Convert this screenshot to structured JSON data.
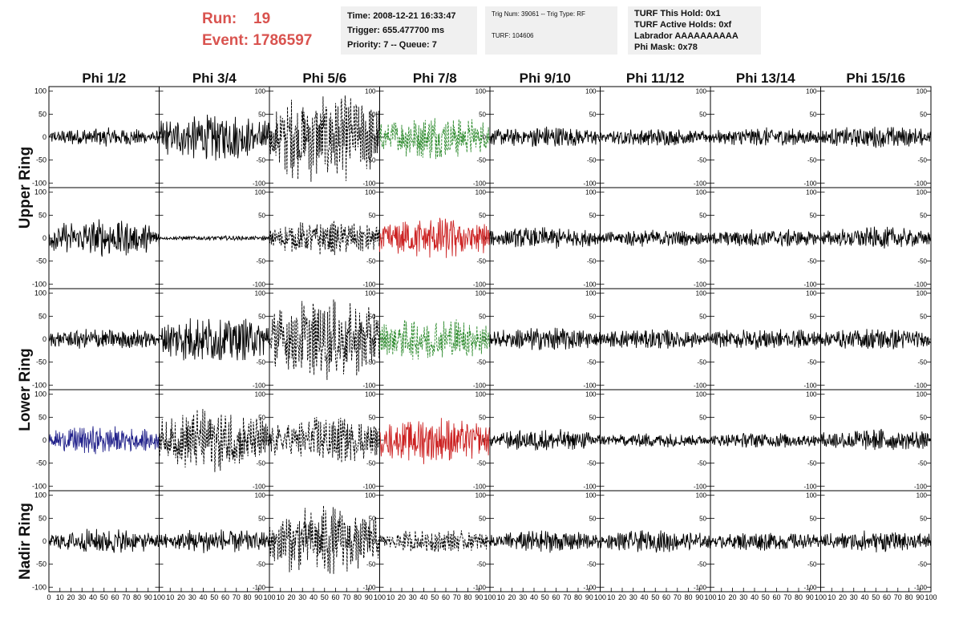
{
  "header": {
    "run_label": "Run:",
    "run_value": "19",
    "event_label": "Event:",
    "event_value": "1786597",
    "time": "Time: 2008-12-21 16:33:47",
    "trigger": "Trigger: 655.477700 ms",
    "priority": "Priority: 7 -- Queue: 7",
    "trig_num": "Trig Num: 39061 -- Trig Type: RF",
    "turf": "TURF: 104606",
    "turf_hold": "TURF This Hold: 0x1",
    "turf_active": "TURF Active Holds: 0xf",
    "labrador": "Labrador AAAAAAAAAA",
    "phi_mask": "Phi Mask: 0x78"
  },
  "chart_data": {
    "type": "line",
    "columns": [
      "Phi 1/2",
      "Phi 3/4",
      "Phi 5/6",
      "Phi 7/8",
      "Phi 9/10",
      "Phi 11/12",
      "Phi 13/14",
      "Phi 15/16"
    ],
    "rings": [
      "Upper Ring",
      "Lower Ring",
      "Nadir Ring"
    ],
    "xlim": [
      0,
      100
    ],
    "ylim": [
      -110,
      110
    ],
    "x_ticks": [
      "0",
      "10",
      "20",
      "30",
      "40",
      "50",
      "60",
      "70",
      "80",
      "90",
      "100"
    ],
    "y_ticks": [
      "100",
      "50",
      "0",
      "-50",
      "-100"
    ],
    "colors": {
      "default": "#000000",
      "green": "#2e8b2e",
      "red": "#cc2222",
      "blue": "#22228b"
    },
    "panels": [
      [
        {
          "amp": 12,
          "style": "solid",
          "color": "default"
        },
        {
          "amp": 30,
          "style": "solid",
          "color": "default"
        },
        {
          "amp": 58,
          "style": "dashed",
          "color": "default"
        },
        {
          "amp": 28,
          "style": "dashed",
          "color": "green"
        },
        {
          "amp": 14,
          "style": "solid",
          "color": "default"
        },
        {
          "amp": 11,
          "style": "solid",
          "color": "default"
        },
        {
          "amp": 12,
          "style": "solid",
          "color": "default"
        },
        {
          "amp": 14,
          "style": "solid",
          "color": "default"
        }
      ],
      [
        {
          "amp": 24,
          "style": "solid",
          "color": "default"
        },
        {
          "amp": 3,
          "style": "solid",
          "color": "default"
        },
        {
          "amp": 22,
          "style": "dashed",
          "color": "default"
        },
        {
          "amp": 28,
          "style": "solid",
          "color": "red"
        },
        {
          "amp": 14,
          "style": "solid",
          "color": "default"
        },
        {
          "amp": 11,
          "style": "solid",
          "color": "default"
        },
        {
          "amp": 12,
          "style": "solid",
          "color": "default"
        },
        {
          "amp": 14,
          "style": "solid",
          "color": "default"
        }
      ],
      [
        {
          "amp": 14,
          "style": "solid",
          "color": "default"
        },
        {
          "amp": 30,
          "style": "solid",
          "color": "default"
        },
        {
          "amp": 52,
          "style": "dashed",
          "color": "default"
        },
        {
          "amp": 28,
          "style": "dashed",
          "color": "green"
        },
        {
          "amp": 15,
          "style": "solid",
          "color": "default"
        },
        {
          "amp": 13,
          "style": "solid",
          "color": "default"
        },
        {
          "amp": 14,
          "style": "solid",
          "color": "default"
        },
        {
          "amp": 14,
          "style": "solid",
          "color": "default"
        }
      ],
      [
        {
          "amp": 18,
          "style": "solid",
          "color": "blue"
        },
        {
          "amp": 40,
          "style": "dashed",
          "color": "default"
        },
        {
          "amp": 30,
          "style": "dashed",
          "color": "default"
        },
        {
          "amp": 30,
          "style": "solid",
          "color": "red"
        },
        {
          "amp": 14,
          "style": "solid",
          "color": "default"
        },
        {
          "amp": 9,
          "style": "solid",
          "color": "default"
        },
        {
          "amp": 10,
          "style": "solid",
          "color": "default"
        },
        {
          "amp": 15,
          "style": "solid",
          "color": "default"
        }
      ],
      [
        {
          "amp": 16,
          "style": "solid",
          "color": "default"
        },
        {
          "amp": 16,
          "style": "solid",
          "color": "default"
        },
        {
          "amp": 45,
          "style": "dashed",
          "color": "default"
        },
        {
          "amp": 15,
          "style": "dashed",
          "color": "default"
        },
        {
          "amp": 14,
          "style": "solid",
          "color": "default"
        },
        {
          "amp": 14,
          "style": "solid",
          "color": "default"
        },
        {
          "amp": 12,
          "style": "solid",
          "color": "default"
        },
        {
          "amp": 14,
          "style": "solid",
          "color": "default"
        }
      ]
    ]
  }
}
